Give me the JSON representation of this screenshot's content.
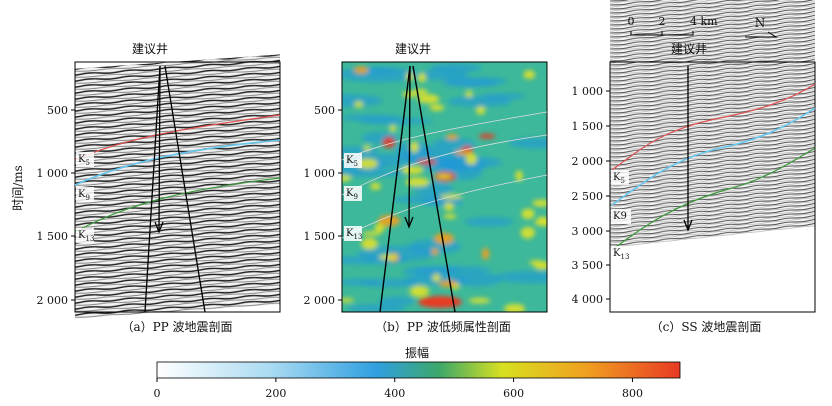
{
  "panels": [
    {
      "id": "a",
      "caption": "（a）PP 波地震剖面",
      "well": "建议井",
      "ylabel": "时间/ms",
      "yticks": [
        "500",
        "1 000",
        "1 500",
        "2 000"
      ],
      "horizons": [
        {
          "label": "K",
          "sub": "5",
          "color": "#e05050"
        },
        {
          "label": "K",
          "sub": "9",
          "color": "#66c8f0"
        },
        {
          "label": "K",
          "sub": "13",
          "color": "#3a9a3a"
        }
      ]
    },
    {
      "id": "b",
      "caption": "（b）PP 波低频属性剖面",
      "well": "建议井",
      "yticks": [
        "500",
        "1 000",
        "1 500",
        "2 000"
      ],
      "horizons": [
        {
          "label": "K",
          "sub": "5"
        },
        {
          "label": "K",
          "sub": "9"
        },
        {
          "label": "K",
          "sub": "13"
        }
      ]
    },
    {
      "id": "c",
      "caption": "（c）SS 波地震剖面",
      "well": "建议井",
      "yticks": [
        "1 000",
        "1 500",
        "2 000",
        "2 500",
        "3 000",
        "3 500",
        "4 000"
      ],
      "horizons": [
        {
          "label": "K",
          "sub": "5",
          "color": "#e05050"
        },
        {
          "label": "K9",
          "sub": "",
          "color": "#66c8f0"
        },
        {
          "label": "K",
          "sub": "13",
          "color": "#3a9a3a"
        }
      ]
    }
  ],
  "scalebar": {
    "ticks": [
      "0",
      "2",
      "4 km"
    ]
  },
  "north": "N",
  "colorbar": {
    "title": "振幅",
    "ticks": [
      "0",
      "200",
      "400",
      "600",
      "800"
    ],
    "tick_values": [
      0,
      200,
      400,
      600,
      800
    ],
    "range": [
      0,
      880
    ],
    "stops": [
      "#ffffff",
      "#a8daf2",
      "#2f9fe0",
      "#3da86a",
      "#d8e020",
      "#f0a020",
      "#e83a24"
    ]
  }
}
